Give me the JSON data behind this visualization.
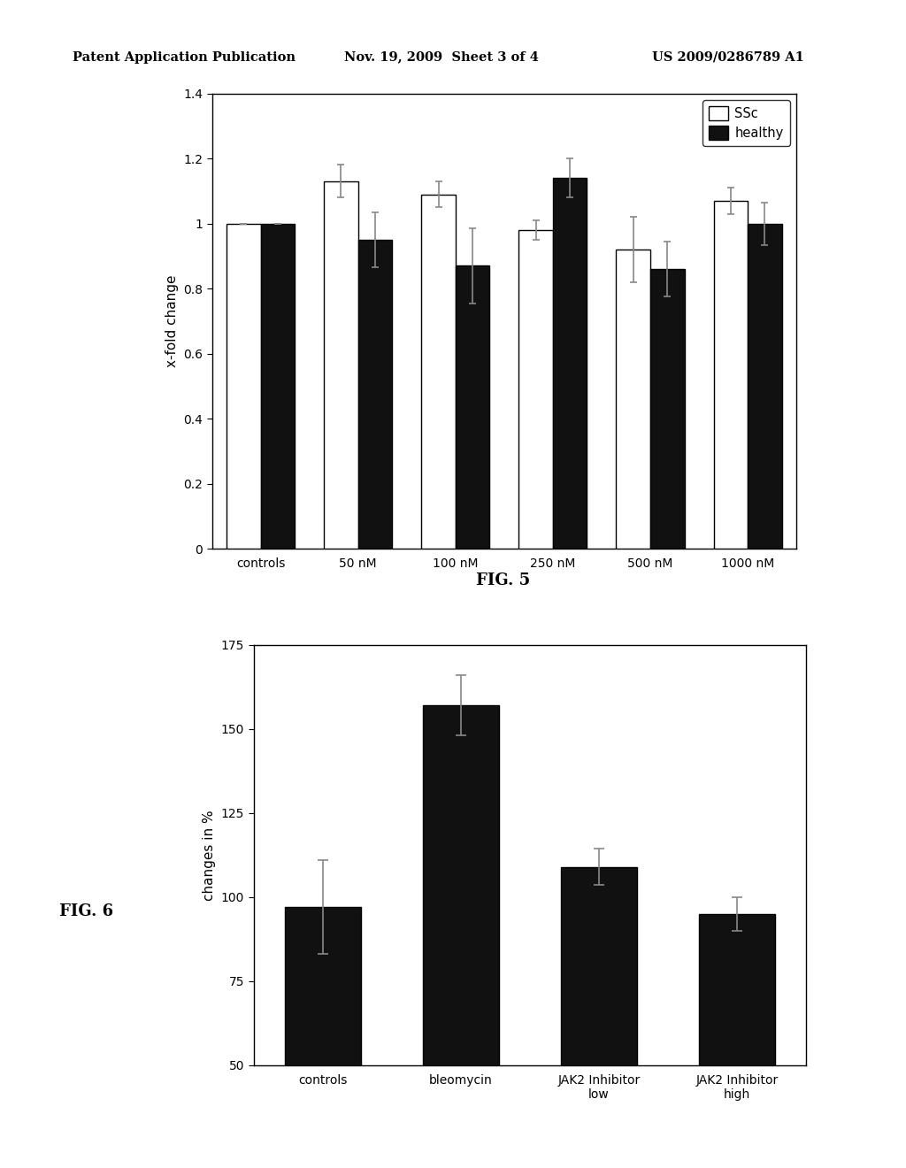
{
  "fig5": {
    "categories": [
      "controls",
      "50 nM",
      "100 nM",
      "250 nM",
      "500 nM",
      "1000 nM"
    ],
    "ssc_values": [
      1.0,
      1.13,
      1.09,
      0.98,
      0.92,
      1.07
    ],
    "ssc_errors": [
      0.0,
      0.05,
      0.04,
      0.03,
      0.1,
      0.04
    ],
    "healthy_values": [
      1.0,
      0.95,
      0.87,
      1.14,
      0.86,
      1.0
    ],
    "healthy_errors": [
      0.0,
      0.085,
      0.115,
      0.06,
      0.085,
      0.065
    ],
    "ylabel": "x-fold change",
    "ylim": [
      0,
      1.4
    ],
    "yticks": [
      0,
      0.2,
      0.4,
      0.6,
      0.8,
      1.0,
      1.2,
      1.4
    ],
    "legend_labels": [
      "SSc",
      "healthy"
    ],
    "bar_width": 0.35,
    "ssc_color": "#ffffff",
    "healthy_color": "#111111",
    "edge_color": "#000000",
    "fig_label": "FIG. 5"
  },
  "fig6": {
    "categories": [
      "controls",
      "bleomycin",
      "JAK2 Inhibitor\nlow",
      "JAK2 Inhibitor\nhigh"
    ],
    "values": [
      97.0,
      157.0,
      109.0,
      95.0
    ],
    "errors": [
      14.0,
      9.0,
      5.5,
      5.0
    ],
    "ylabel": "changes in %",
    "ylim": [
      50,
      175
    ],
    "yticks": [
      50,
      75,
      100,
      125,
      150,
      175
    ],
    "bar_color": "#111111",
    "edge_color": "#000000",
    "fig_label": "FIG. 6"
  },
  "header_left": "Patent Application Publication",
  "header_mid": "Nov. 19, 2009  Sheet 3 of 4",
  "header_right": "US 2009/0286789 A1",
  "bg_color": "#ffffff",
  "text_color": "#000000"
}
